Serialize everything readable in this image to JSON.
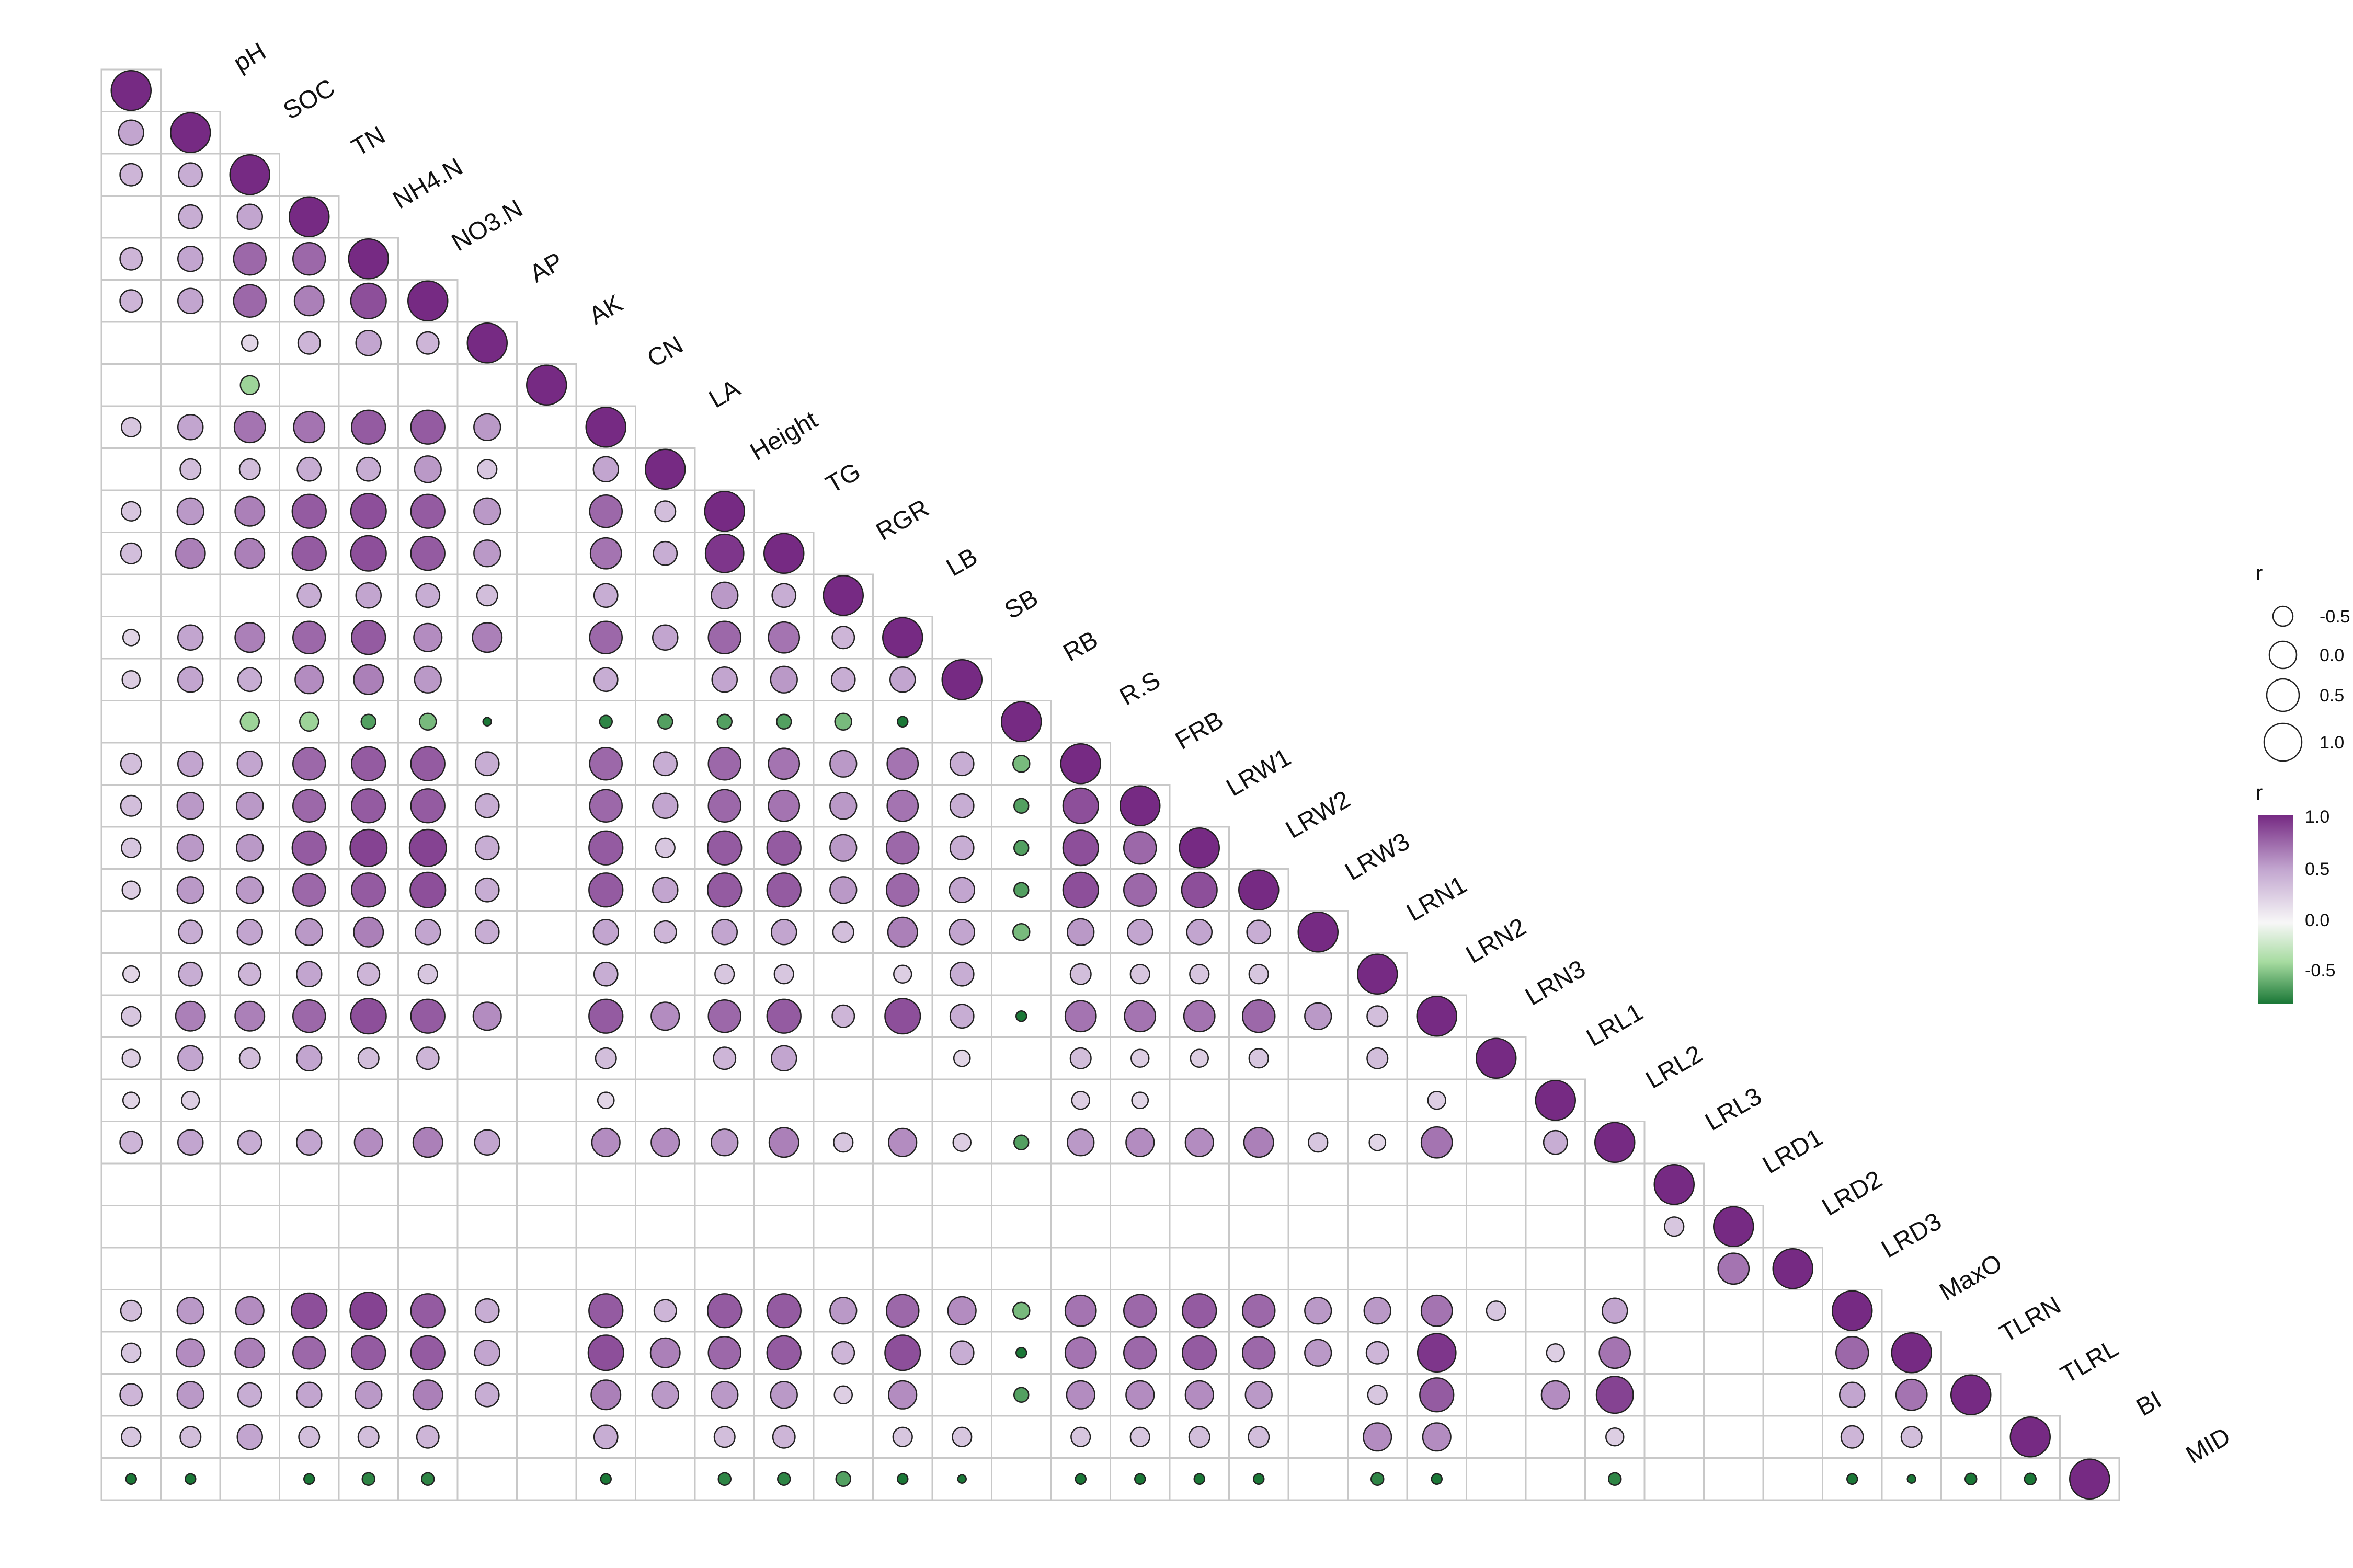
{
  "chart_data": {
    "type": "heatmap",
    "variables": [
      "pH",
      "SOC",
      "TN",
      "NH4.N",
      "NO3.N",
      "AP",
      "AK",
      "CN",
      "LA",
      "Height",
      "TG",
      "RGR",
      "LB",
      "SB",
      "RB",
      "R.S",
      "FRB",
      "LRW1",
      "LRW2",
      "LRW3",
      "LRN1",
      "LRN2",
      "LRN3",
      "LRL1",
      "LRL2",
      "LRL3",
      "LRD1",
      "LRD2",
      "LRD3",
      "MaxO",
      "TLRN",
      "TLRL",
      "BI",
      "MID"
    ],
    "matrix": [
      [
        1.0
      ],
      [
        0.5,
        1.0
      ],
      [
        0.4,
        0.45,
        1.0
      ],
      [
        null,
        0.45,
        0.5,
        1.0
      ],
      [
        0.4,
        0.5,
        0.75,
        0.75,
        1.0
      ],
      [
        0.4,
        0.5,
        0.75,
        0.65,
        0.85,
        1.0
      ],
      [
        null,
        null,
        0.2,
        0.4,
        0.5,
        0.4,
        1.0
      ],
      [
        null,
        null,
        -0.4,
        null,
        null,
        null,
        null,
        1.0
      ],
      [
        0.3,
        0.5,
        0.7,
        0.7,
        0.8,
        0.8,
        0.55,
        null,
        1.0
      ],
      [
        null,
        0.35,
        0.35,
        0.45,
        0.45,
        0.55,
        0.3,
        null,
        0.5,
        1.0
      ],
      [
        0.3,
        0.55,
        0.65,
        0.8,
        0.85,
        0.8,
        0.55,
        null,
        0.75,
        0.35,
        1.0
      ],
      [
        0.35,
        0.65,
        0.65,
        0.8,
        0.85,
        0.8,
        0.55,
        null,
        0.7,
        0.45,
        0.95,
        1.0
      ],
      [
        null,
        null,
        null,
        0.45,
        0.5,
        0.45,
        0.35,
        null,
        0.45,
        null,
        0.55,
        0.45,
        1.0
      ],
      [
        0.2,
        0.5,
        0.65,
        0.75,
        0.8,
        0.6,
        0.65,
        null,
        0.75,
        0.5,
        0.75,
        0.7,
        0.4,
        1.0
      ],
      [
        0.25,
        0.5,
        0.45,
        0.6,
        0.65,
        0.55,
        null,
        null,
        0.45,
        null,
        0.5,
        0.55,
        0.45,
        0.5,
        1.0
      ],
      [
        null,
        null,
        -0.4,
        -0.4,
        -0.6,
        -0.5,
        -0.9,
        null,
        -0.7,
        -0.6,
        -0.6,
        -0.6,
        -0.5,
        -0.8,
        null,
        1.0
      ],
      [
        0.35,
        0.5,
        0.5,
        0.75,
        0.8,
        0.8,
        0.45,
        null,
        0.75,
        0.45,
        0.75,
        0.7,
        0.55,
        0.7,
        0.45,
        -0.5,
        1.0
      ],
      [
        0.35,
        0.55,
        0.55,
        0.75,
        0.8,
        0.8,
        0.45,
        null,
        0.75,
        0.5,
        0.75,
        0.7,
        0.55,
        0.7,
        0.45,
        -0.6,
        0.85,
        1.0
      ],
      [
        0.3,
        0.55,
        0.55,
        0.8,
        0.9,
        0.9,
        0.45,
        null,
        0.8,
        0.3,
        0.8,
        0.8,
        0.55,
        0.75,
        0.45,
        -0.6,
        0.85,
        0.75,
        1.0
      ],
      [
        0.25,
        0.55,
        0.55,
        0.75,
        0.8,
        0.85,
        0.45,
        null,
        0.8,
        0.5,
        0.8,
        0.8,
        0.55,
        0.75,
        0.5,
        -0.6,
        0.85,
        0.75,
        0.85,
        1.0
      ],
      [
        null,
        0.45,
        0.5,
        0.55,
        0.65,
        0.5,
        0.45,
        null,
        0.5,
        0.4,
        0.5,
        0.5,
        0.35,
        0.65,
        0.5,
        -0.5,
        0.55,
        0.5,
        0.5,
        0.45,
        1.0
      ],
      [
        0.2,
        0.45,
        0.4,
        0.5,
        0.4,
        0.3,
        null,
        null,
        0.45,
        null,
        0.3,
        0.3,
        null,
        0.25,
        0.45,
        null,
        0.35,
        0.3,
        0.3,
        0.3,
        null,
        1.0
      ],
      [
        0.3,
        0.65,
        0.65,
        0.75,
        0.85,
        0.8,
        0.6,
        null,
        0.8,
        0.6,
        0.75,
        0.8,
        0.4,
        0.85,
        0.45,
        -0.8,
        0.7,
        0.7,
        0.7,
        0.75,
        0.55,
        0.35,
        1.0
      ],
      [
        0.25,
        0.5,
        0.35,
        0.5,
        0.35,
        0.4,
        null,
        null,
        0.35,
        null,
        0.4,
        0.5,
        null,
        null,
        0.2,
        null,
        0.35,
        0.25,
        0.25,
        0.3,
        null,
        0.35,
        null,
        1.0
      ],
      [
        0.2,
        0.25,
        null,
        null,
        null,
        null,
        null,
        null,
        0.2,
        null,
        null,
        null,
        null,
        null,
        null,
        null,
        0.25,
        0.2,
        null,
        null,
        null,
        null,
        0.25,
        null,
        1.0
      ],
      [
        0.4,
        0.5,
        0.45,
        0.5,
        0.6,
        0.65,
        0.5,
        null,
        0.6,
        0.6,
        0.55,
        0.65,
        0.3,
        0.6,
        0.25,
        -0.6,
        0.55,
        0.6,
        0.6,
        0.65,
        0.3,
        0.2,
        0.7,
        null,
        0.45,
        1.0
      ],
      [
        null,
        null,
        null,
        null,
        null,
        null,
        null,
        null,
        null,
        null,
        null,
        null,
        null,
        null,
        null,
        null,
        null,
        null,
        null,
        null,
        null,
        null,
        null,
        null,
        null,
        null,
        1.0
      ],
      [
        null,
        null,
        null,
        null,
        null,
        null,
        null,
        null,
        null,
        null,
        null,
        null,
        null,
        null,
        null,
        null,
        null,
        null,
        null,
        null,
        null,
        null,
        null,
        null,
        null,
        null,
        0.3,
        1.0
      ],
      [
        null,
        null,
        null,
        null,
        null,
        null,
        null,
        null,
        null,
        null,
        null,
        null,
        null,
        null,
        null,
        null,
        null,
        null,
        null,
        null,
        null,
        null,
        null,
        null,
        null,
        null,
        null,
        0.7,
        1.0
      ],
      [
        0.35,
        0.55,
        0.6,
        0.85,
        0.9,
        0.8,
        0.45,
        null,
        0.8,
        0.4,
        0.8,
        0.8,
        0.55,
        0.75,
        0.6,
        -0.5,
        0.7,
        0.75,
        0.8,
        0.75,
        0.55,
        0.55,
        0.7,
        0.3,
        null,
        0.5,
        null,
        null,
        null,
        1.0
      ],
      [
        0.3,
        0.6,
        0.65,
        0.75,
        0.8,
        0.8,
        0.5,
        null,
        0.85,
        0.65,
        0.75,
        0.8,
        0.4,
        0.85,
        0.45,
        -0.8,
        0.7,
        0.75,
        0.8,
        0.75,
        0.55,
        0.4,
        0.95,
        null,
        0.25,
        0.7,
        null,
        null,
        null,
        0.75,
        1.0
      ],
      [
        0.4,
        0.55,
        0.45,
        0.5,
        0.55,
        0.65,
        0.45,
        null,
        0.65,
        0.55,
        0.55,
        0.55,
        0.25,
        0.6,
        null,
        -0.6,
        0.6,
        0.6,
        0.6,
        0.55,
        null,
        0.3,
        0.8,
        null,
        0.6,
        0.9,
        null,
        null,
        null,
        0.5,
        0.7,
        1.0
      ],
      [
        0.3,
        0.35,
        0.5,
        0.35,
        0.35,
        0.4,
        null,
        null,
        0.45,
        null,
        0.35,
        0.4,
        null,
        0.3,
        0.3,
        null,
        0.3,
        0.3,
        0.35,
        0.35,
        null,
        0.6,
        0.6,
        null,
        null,
        0.25,
        null,
        null,
        null,
        0.4,
        0.35,
        null,
        1.0
      ],
      [
        -0.8,
        -0.8,
        null,
        -0.8,
        -0.7,
        -0.7,
        null,
        null,
        -0.8,
        null,
        -0.7,
        -0.7,
        -0.6,
        -0.8,
        -0.9,
        null,
        -0.8,
        -0.8,
        -0.8,
        -0.8,
        null,
        -0.7,
        -0.8,
        null,
        null,
        -0.7,
        null,
        null,
        null,
        -0.8,
        -0.9,
        -0.75,
        -0.75,
        1.0
      ]
    ],
    "legend_size": {
      "title": "r",
      "values": [
        "-0.5",
        "0.0",
        "0.5",
        "1.0"
      ]
    },
    "legend_color": {
      "title": "r",
      "ticks": [
        "1.0",
        "0.5",
        "0.0",
        "-0.5"
      ],
      "range": [
        -0.75,
        1.0
      ]
    },
    "colors": {
      "positive": "#762a83",
      "neutral": "#f7f7f7",
      "negative": "#1b7837",
      "grid": "#c8c8c8"
    }
  }
}
